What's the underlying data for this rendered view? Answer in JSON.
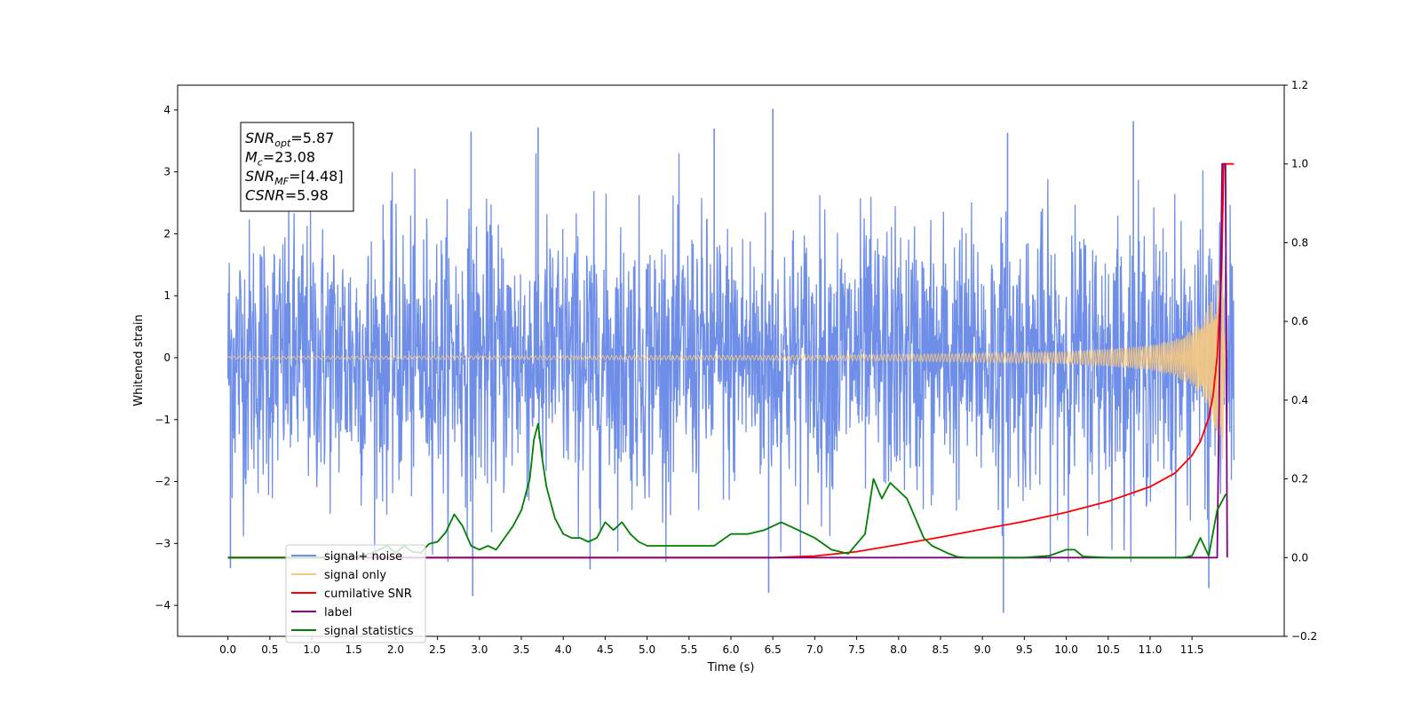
{
  "chart_data": {
    "type": "line",
    "title": "",
    "xlabel": "Time (s)",
    "ylabel": "Whitened strain",
    "xlim": [
      -0.6,
      12.6
    ],
    "ylim": [
      -4.5,
      4.4
    ],
    "y2lim": [
      -0.2,
      1.2
    ],
    "grid": false,
    "legend_position": "lower-left",
    "x_ticks": [
      0.0,
      0.5,
      1.0,
      1.5,
      2.0,
      2.5,
      3.0,
      3.5,
      4.0,
      4.5,
      5.0,
      5.5,
      6.0,
      6.5,
      7.0,
      7.5,
      8.0,
      8.5,
      9.0,
      9.5,
      10.0,
      10.5,
      11.0,
      11.5
    ],
    "x_tick_labels": [
      "0.0",
      "0.5",
      "1.0",
      "1.5",
      "2.0",
      "2.5",
      "3.0",
      "3.5",
      "4.0",
      "4.5",
      "5.0",
      "5.5",
      "6.0",
      "6.5",
      "7.0",
      "7.5",
      "8.0",
      "8.5",
      "9.0",
      "9.5",
      "10.0",
      "10.5",
      "11.0",
      "11.5"
    ],
    "y_ticks": [
      -4,
      -3,
      -2,
      -1,
      0,
      1,
      2,
      3,
      4
    ],
    "y_tick_labels": [
      "−4",
      "−3",
      "−2",
      "−1",
      "0",
      "1",
      "2",
      "3",
      "4"
    ],
    "y2_ticks": [
      -0.2,
      0.0,
      0.2,
      0.4,
      0.6,
      0.8,
      1.0,
      1.2
    ],
    "y2_tick_labels": [
      "−0.2",
      "0.0",
      "0.2",
      "0.4",
      "0.6",
      "0.8",
      "1.0",
      "1.2"
    ],
    "annotation": {
      "lines": [
        {
          "base": "SNR",
          "sub": "opt",
          "value": "=5.87"
        },
        {
          "base": "M",
          "sub": "c",
          "value": "=23.08"
        },
        {
          "base": "SNR",
          "sub": "MF",
          "value": "=[4.48]"
        },
        {
          "base": "CSNR",
          "sub": "",
          "value": "=5.98"
        }
      ]
    },
    "series": [
      {
        "name": "signal+ noise",
        "color": "#6f8ee8",
        "axis": "left",
        "description_of_values": "noise band",
        "x_range": [
          0.0,
          12.0
        ],
        "typical_range": [
          -2.2,
          2.2
        ],
        "peaks": [
          {
            "x": 6.5,
            "y": 4.02
          },
          {
            "x": 3.7,
            "y": 3.72
          },
          {
            "x": 10.8,
            "y": 3.82
          },
          {
            "x": 5.8,
            "y": 3.7
          },
          {
            "x": 9.3,
            "y": 3.63
          },
          {
            "x": 9.25,
            "y": -4.12
          },
          {
            "x": 2.92,
            "y": -3.85
          },
          {
            "x": 6.45,
            "y": -3.8
          },
          {
            "x": 11.7,
            "y": -3.72
          },
          {
            "x": 4.32,
            "y": -3.42
          },
          {
            "x": 0.03,
            "y": -3.4
          },
          {
            "x": 2.9,
            "y": 3.65
          }
        ]
      },
      {
        "name": "signal only",
        "color": "#f7c97e",
        "axis": "left",
        "description_of_values": "chirp envelope (amplitude)",
        "x": [
          0.0,
          7.0,
          9.0,
          10.0,
          10.5,
          11.0,
          11.3,
          11.5,
          11.65,
          11.75,
          11.85,
          11.9,
          11.92
        ],
        "envelope": [
          0.02,
          0.04,
          0.07,
          0.1,
          0.14,
          0.2,
          0.3,
          0.45,
          0.7,
          1.0,
          1.5,
          2.0,
          0.0
        ]
      },
      {
        "name": "cumilative SNR",
        "color": "#ff0000",
        "axis": "right",
        "x": [
          0.0,
          6.0,
          6.5,
          7.0,
          7.5,
          8.0,
          8.5,
          9.0,
          9.5,
          10.0,
          10.5,
          11.0,
          11.3,
          11.5,
          11.6,
          11.7,
          11.75,
          11.8,
          11.85,
          11.88,
          11.9,
          12.0
        ],
        "values": [
          0.0,
          0.0,
          0.0,
          0.004,
          0.015,
          0.033,
          0.052,
          0.072,
          0.092,
          0.115,
          0.143,
          0.18,
          0.215,
          0.26,
          0.295,
          0.355,
          0.41,
          0.51,
          0.72,
          1.0,
          1.0,
          1.0
        ]
      },
      {
        "name": "label",
        "color": "#800080",
        "axis": "right",
        "x": [
          0.0,
          11.8,
          11.86,
          11.9,
          11.92
        ],
        "values": [
          0.0,
          0.0,
          1.0,
          1.0,
          0.0
        ]
      },
      {
        "name": "signal statistics",
        "color": "#008000",
        "axis": "right",
        "x": [
          0.0,
          0.5,
          1.0,
          1.5,
          1.7,
          1.9,
          2.0,
          2.1,
          2.2,
          2.3,
          2.4,
          2.5,
          2.6,
          2.7,
          2.8,
          2.9,
          3.0,
          3.1,
          3.2,
          3.3,
          3.4,
          3.5,
          3.6,
          3.65,
          3.7,
          3.75,
          3.8,
          3.9,
          4.0,
          4.1,
          4.2,
          4.3,
          4.4,
          4.5,
          4.6,
          4.7,
          4.8,
          4.9,
          5.0,
          5.2,
          5.4,
          5.6,
          5.8,
          6.0,
          6.2,
          6.4,
          6.6,
          6.8,
          7.0,
          7.2,
          7.4,
          7.6,
          7.7,
          7.8,
          7.9,
          8.0,
          8.1,
          8.2,
          8.3,
          8.4,
          8.5,
          8.6,
          8.7,
          8.8,
          9.0,
          9.5,
          9.8,
          10.0,
          10.1,
          10.2,
          10.5,
          11.0,
          11.4,
          11.5,
          11.6,
          11.7,
          11.8,
          11.9,
          11.92
        ],
        "values": [
          0.0,
          0.0,
          0.0,
          0.002,
          0.01,
          0.03,
          0.012,
          0.03,
          0.015,
          0.012,
          0.035,
          0.04,
          0.065,
          0.11,
          0.08,
          0.03,
          0.02,
          0.03,
          0.02,
          0.05,
          0.08,
          0.12,
          0.2,
          0.3,
          0.34,
          0.25,
          0.18,
          0.1,
          0.06,
          0.05,
          0.05,
          0.04,
          0.05,
          0.09,
          0.07,
          0.09,
          0.06,
          0.04,
          0.03,
          0.03,
          0.03,
          0.03,
          0.03,
          0.06,
          0.06,
          0.07,
          0.09,
          0.07,
          0.05,
          0.02,
          0.01,
          0.06,
          0.2,
          0.15,
          0.19,
          0.17,
          0.15,
          0.1,
          0.05,
          0.03,
          0.02,
          0.01,
          0.002,
          0.0,
          0.0,
          0.0,
          0.005,
          0.02,
          0.02,
          0.003,
          0.0,
          0.0,
          0.0,
          0.005,
          0.05,
          0.005,
          0.12,
          0.16,
          0.16
        ]
      }
    ],
    "legend": [
      {
        "label": "signal+ noise",
        "color": "#6f8ee8"
      },
      {
        "label": "signal only",
        "color": "#f7c97e"
      },
      {
        "label": "cumilative SNR",
        "color": "#ff0000"
      },
      {
        "label": "label",
        "color": "#800080"
      },
      {
        "label": "signal statistics",
        "color": "#008000"
      }
    ]
  }
}
